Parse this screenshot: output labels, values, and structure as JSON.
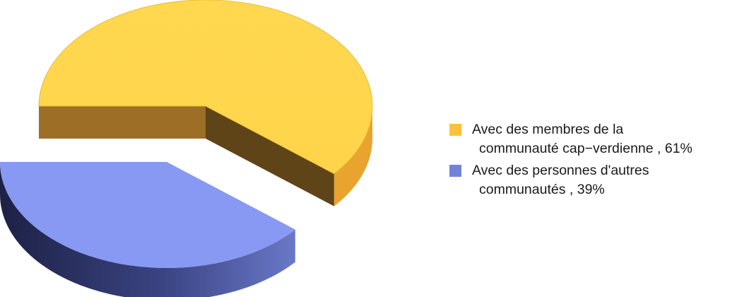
{
  "chart_data": {
    "type": "pie",
    "title": "",
    "slices": [
      {
        "label_line1": "Avec des membres de la",
        "label_line2": "communauté cap−verdienne , 61%",
        "value": 61,
        "color": "#FFD54A",
        "swatch": "#FFC13B"
      },
      {
        "label_line1": "Avec des personnes d'autres",
        "label_line2": "communautés , 39%",
        "value": 39,
        "color": "#8799F2",
        "swatch": "#7383DA"
      }
    ],
    "exploded_slice": 1,
    "legend_position": "right"
  }
}
